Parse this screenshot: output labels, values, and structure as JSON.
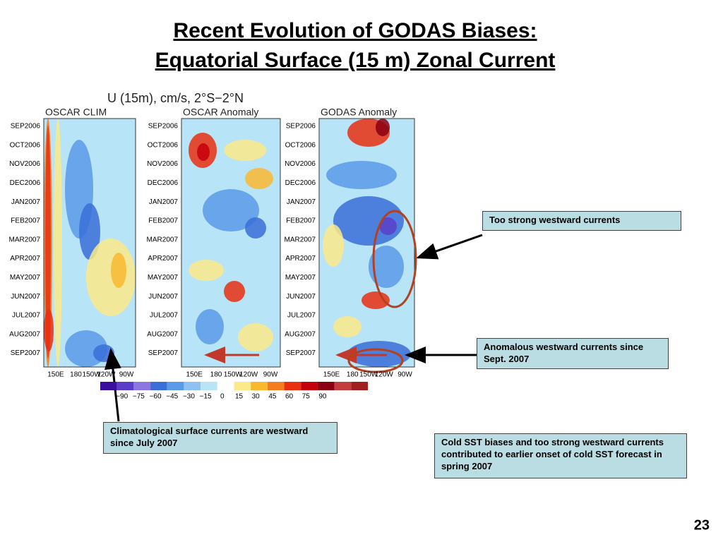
{
  "header": {
    "title_lines": [
      "Recent Evolution of GODAS Biases:",
      "Equatorial Surface (15 m) Zonal Current"
    ]
  },
  "figure": {
    "title": "U (15m), cm/s, 2°S−2°N",
    "panels": [
      "OSCAR CLIM",
      "OSCAR Anomaly",
      "GODAS Anomaly"
    ],
    "months": [
      "SEP2006",
      "OCT2006",
      "NOV2006",
      "DEC2006",
      "JAN2007",
      "FEB2007",
      "MAR2007",
      "APR2007",
      "MAY2007",
      "JUN2007",
      "JUL2007",
      "AUG2007",
      "SEP2007"
    ],
    "longitudes": [
      "150E",
      "180",
      "150W",
      "120W",
      "90W"
    ],
    "colorbar_labels": [
      "−90",
      "−75",
      "−60",
      "−45",
      "−30",
      "−15",
      "0",
      "15",
      "30",
      "45",
      "60",
      "75",
      "90"
    ]
  },
  "callouts": [
    "Too strong westward currents",
    "Anomalous westward currents since Sept. 2007",
    "Climatological surface currents are westward since July 2007",
    "Cold SST biases and too strong westward currents contributed to earlier onset of cold SST forecast in spring 2007"
  ],
  "page_number": "23"
}
